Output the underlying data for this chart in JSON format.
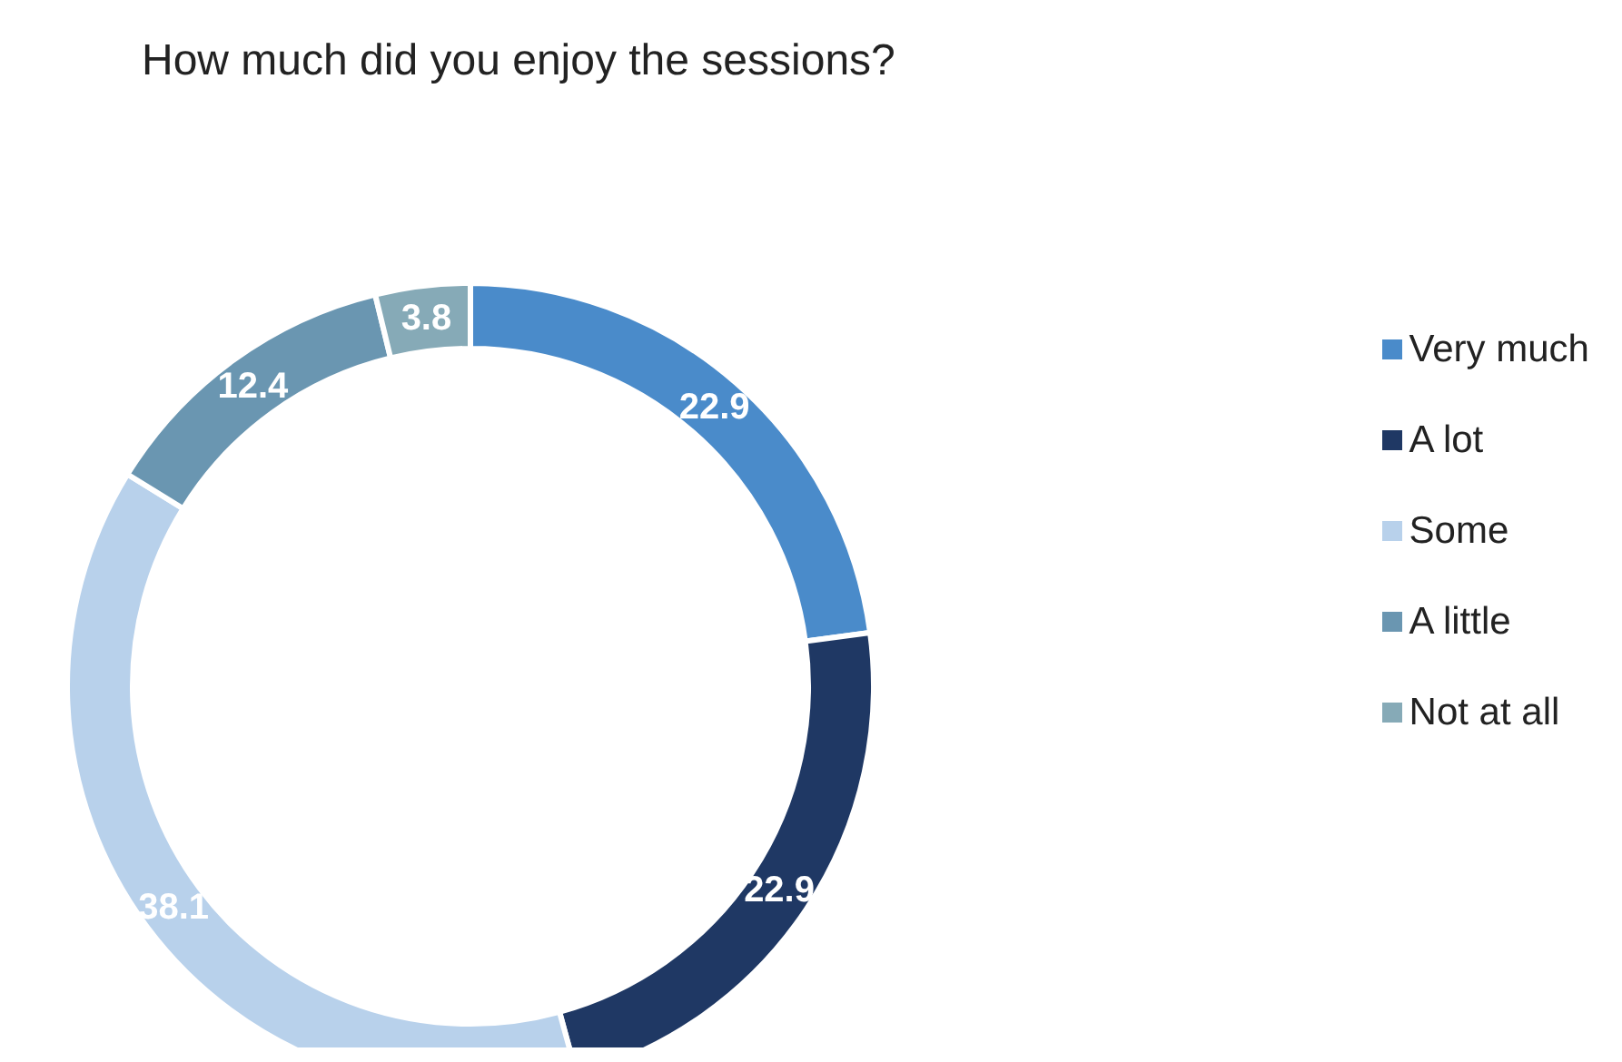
{
  "chart_data": {
    "type": "donut",
    "title": "How much did you enjoy the sessions?",
    "categories": [
      "Very much",
      "A lot",
      "Some",
      "A little",
      "Not at all"
    ],
    "values": [
      22.9,
      22.9,
      38.1,
      12.4,
      3.8
    ],
    "colors": [
      "#4a8bca",
      "#1f3864",
      "#b8d1eb",
      "#6a96b1",
      "#86aab7"
    ],
    "data_labels": true,
    "legend": "right"
  }
}
